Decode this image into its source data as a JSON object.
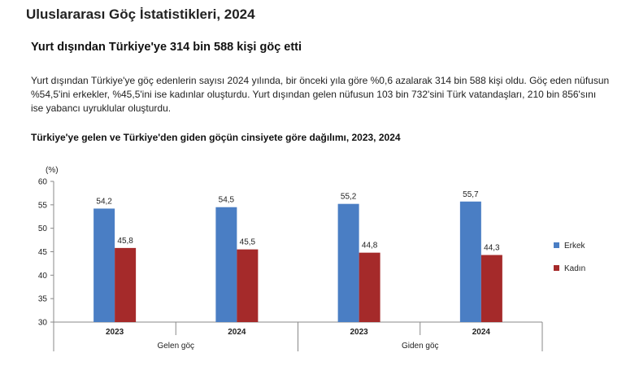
{
  "page": {
    "title": "Uluslararası Göç İstatistikleri, 2024",
    "headline": "Yurt dışından Türkiye'ye 314 bin 588 kişi göç etti",
    "paragraph": "Yurt dışından Türkiye'ye göç edenlerin sayısı 2024 yılında, bir önceki yıla göre %0,6 azalarak 314 bin 588 kişi oldu. Göç eden nüfusun %54,5'ini erkekler, %45,5'ini ise kadınlar oluşturdu. Yurt dışından gelen nüfusun 103 bin 732'sini Türk vatandaşları, 210 bin 856'sını ise yabancı uyruklular oluşturdu."
  },
  "chart_data": {
    "type": "bar",
    "title": "Türkiye'ye gelen ve Türkiye'den giden göçün cinsiyete göre dağılımı, 2023, 2024",
    "ylabel": "(%)",
    "ylim": [
      30,
      60
    ],
    "yticks": [
      "30",
      "35",
      "40",
      "45",
      "50",
      "55",
      "60"
    ],
    "categories": [
      "2023",
      "2024",
      "2023",
      "2024"
    ],
    "groups": [
      "Gelen göç",
      "Giden göç"
    ],
    "series": [
      {
        "name": "Erkek",
        "color": "#4a7ec4",
        "values": [
          54.2,
          54.5,
          55.2,
          55.7
        ],
        "labels": [
          "54,2",
          "54,5",
          "55,2",
          "55,7"
        ]
      },
      {
        "name": "Kadın",
        "color": "#a52a2a",
        "values": [
          45.8,
          45.5,
          44.8,
          44.3
        ],
        "labels": [
          "45,8",
          "45,5",
          "44,8",
          "44,3"
        ]
      }
    ],
    "legend": "right",
    "grid": false
  }
}
